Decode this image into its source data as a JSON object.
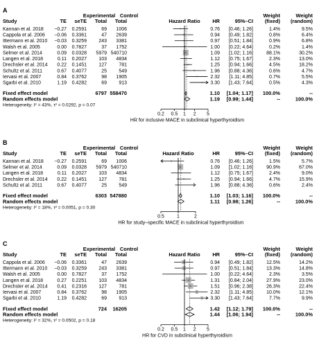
{
  "chart_data": [
    {
      "type": "forest",
      "panel_label": "A",
      "columns": {
        "study": "Study",
        "te": "TE",
        "sete": "seTE",
        "exp": "Experimental",
        "total": "Total",
        "ctrl": "Control",
        "ratio_title": "Hazard Ratio",
        "hr": "HR",
        "ci": "95%–CI",
        "wf1": "Weight",
        "wf2": "(fixed)",
        "wr1": "Weight",
        "wr2": "(random)"
      },
      "studies": [
        {
          "name": "Kannan et al. 2018",
          "te": "−0.27",
          "sete": "0.2591",
          "exp_total": "69",
          "ctrl_total": "1006",
          "hr": 0.76,
          "lo": 0.46,
          "hi": 1.26,
          "ci": "[0.46; 1.26]",
          "wf": "1.4%",
          "wr": "9.5%"
        },
        {
          "name": "Cappola et al. 2006",
          "te": "−0.06",
          "sete": "0.3361",
          "exp_total": "47",
          "ctrl_total": "2639",
          "hr": 0.94,
          "lo": 0.49,
          "hi": 1.82,
          "ci": "[0.49; 1.82]",
          "wf": "0.8%",
          "wr": "6.4%"
        },
        {
          "name": "Ittermann et al. 2010",
          "te": "−0.03",
          "sete": "0.3259",
          "exp_total": "243",
          "ctrl_total": "3381",
          "hr": 0.97,
          "lo": 0.51,
          "hi": 1.84,
          "ci": "[0.51; 1.84]",
          "wf": "0.9%",
          "wr": "6.8%"
        },
        {
          "name": "Walsh et al. 2005",
          "te": "0.00",
          "sete": "0.7827",
          "exp_total": "37",
          "ctrl_total": "1752",
          "hr": 1.0,
          "lo": 0.22,
          "hi": 4.64,
          "ci": "[0.22; 4.64]",
          "wf": "0.2%",
          "wr": "1.4%"
        },
        {
          "name": "Selmer et al. 2014",
          "te": "0.09",
          "sete": "0.0328",
          "exp_total": "5979",
          "ctrl_total": "540710",
          "hr": 1.09,
          "lo": 1.02,
          "hi": 1.16,
          "ci": "[1.02; 1.16]",
          "wf": "88.1%",
          "wr": "30.2%"
        },
        {
          "name": "Langen et al. 2018",
          "te": "0.11",
          "sete": "0.2027",
          "exp_total": "103",
          "ctrl_total": "4834",
          "hr": 1.12,
          "lo": 0.75,
          "hi": 1.67,
          "ci": "[0.75; 1.67]",
          "wf": "2.3%",
          "wr": "13.0%"
        },
        {
          "name": "Drechsler et al. 2014",
          "te": "0.22",
          "sete": "0.1451",
          "exp_total": "127",
          "ctrl_total": "781",
          "hr": 1.25,
          "lo": 0.94,
          "hi": 1.66,
          "ci": "[0.94; 1.66]",
          "wf": "4.5%",
          "wr": "18.2%"
        },
        {
          "name": "Schultz et al. 2011",
          "te": "0.67",
          "sete": "0.4077",
          "exp_total": "25",
          "ctrl_total": "549",
          "hr": 1.96,
          "lo": 0.88,
          "hi": 4.36,
          "ci": "[0.88; 4.36]",
          "wf": "0.6%",
          "wr": "4.7%"
        },
        {
          "name": "Iervasi et al. 2007",
          "te": "0.84",
          "sete": "0.3762",
          "exp_total": "98",
          "ctrl_total": "1905",
          "hr": 2.32,
          "lo": 1.11,
          "hi": 4.85,
          "ci": "[1.11; 4.85]",
          "wf": "0.7%",
          "wr": "5.5%"
        },
        {
          "name": "Sgarbi et al. 2010",
          "te": "1.19",
          "sete": "0.4282",
          "exp_total": "69",
          "ctrl_total": "913",
          "hr": 3.3,
          "lo": 1.43,
          "hi": 7.64,
          "ci": "[1.43; 7.64]",
          "wf": "0.5%",
          "wr": "4.3%"
        }
      ],
      "fixed": {
        "label": "Fixed effect model",
        "exp_total": "6797",
        "ctrl_total": "558470",
        "hr": 1.1,
        "lo": 1.04,
        "hi": 1.17,
        "ci": "[1.04; 1.17]",
        "wf": "100.0%",
        "wr": "--"
      },
      "random": {
        "label": "Random effects model",
        "hr": 1.19,
        "lo": 0.99,
        "hi": 1.44,
        "ci": "[0.99; 1.44]",
        "wf": "--",
        "wr": "100.0%"
      },
      "heterogeneity": "Heterogeneity: I² = 43%, τ² = 0.0292, p = 0.07",
      "axis_ticks": [
        0.2,
        0.5,
        1,
        2,
        5
      ],
      "axis_tick_labels": [
        "0.2",
        "0.5",
        "1",
        "2",
        "5"
      ],
      "xlim": [
        0.2,
        5
      ],
      "scale": "log",
      "xlabel": "HR for inclusive MACE in subclinical hyperthyroidism"
    },
    {
      "type": "forest",
      "panel_label": "B",
      "columns": {
        "study": "Study",
        "te": "TE",
        "sete": "seTE",
        "exp": "Experimental",
        "total": "Total",
        "ctrl": "Control",
        "ratio_title": "Hazard Ratio",
        "hr": "HR",
        "ci": "95%–CI",
        "wf1": "Weight",
        "wf2": "(fixed)",
        "wr1": "Weight",
        "wr2": "(random)"
      },
      "studies": [
        {
          "name": "Kannan et al. 2018",
          "te": "−0.27",
          "sete": "0.2591",
          "exp_total": "69",
          "ctrl_total": "1006",
          "hr": 0.76,
          "lo": 0.46,
          "hi": 1.26,
          "ci": "[0.46; 1.26]",
          "wf": "1.5%",
          "wr": "5.7%"
        },
        {
          "name": "Selmer et al. 2014",
          "te": "0.09",
          "sete": "0.0328",
          "exp_total": "5979",
          "ctrl_total": "540710",
          "hr": 1.09,
          "lo": 1.02,
          "hi": 1.16,
          "ci": "[1.02; 1.16]",
          "wf": "90.9%",
          "wr": "67.0%"
        },
        {
          "name": "Langen et al. 2018",
          "te": "0.11",
          "sete": "0.2027",
          "exp_total": "103",
          "ctrl_total": "4834",
          "hr": 1.12,
          "lo": 0.75,
          "hi": 1.67,
          "ci": "[0.75; 1.67]",
          "wf": "2.4%",
          "wr": "9.0%"
        },
        {
          "name": "Drechsler et al. 2014",
          "te": "0.22",
          "sete": "0.1451",
          "exp_total": "127",
          "ctrl_total": "781",
          "hr": 1.25,
          "lo": 0.94,
          "hi": 1.66,
          "ci": "[0.94; 1.66]",
          "wf": "4.7%",
          "wr": "15.9%"
        },
        {
          "name": "Schultz et al. 2011",
          "te": "0.67",
          "sete": "0.4077",
          "exp_total": "25",
          "ctrl_total": "549",
          "hr": 1.96,
          "lo": 0.88,
          "hi": 4.36,
          "ci": "[0.88; 4.36]",
          "wf": "0.6%",
          "wr": "2.4%"
        }
      ],
      "fixed": {
        "label": "Fixed effect model",
        "exp_total": "6303",
        "ctrl_total": "547880",
        "hr": 1.1,
        "lo": 1.03,
        "hi": 1.16,
        "ci": "[1.03; 1.16]",
        "wf": "100.0%",
        "wr": "--"
      },
      "random": {
        "label": "Random effects model",
        "hr": 1.11,
        "lo": 0.98,
        "hi": 1.26,
        "ci": "[0.98; 1.26]",
        "wf": "--",
        "wr": "100.0%"
      },
      "heterogeneity": "Heterogeneity: I² = 18%, τ² = 0.0051, p = 0.30",
      "axis_ticks": [
        0.5,
        1,
        2
      ],
      "axis_tick_labels": [
        "0.5",
        "1",
        "2"
      ],
      "xlim": [
        0.5,
        2
      ],
      "scale": "log",
      "xlabel": "HR for study–specific MACE in subclinical hyperthyroidism"
    },
    {
      "type": "forest",
      "panel_label": "C",
      "columns": {
        "study": "Study",
        "te": "TE",
        "sete": "seTE",
        "exp": "Experimental",
        "total": "Total",
        "ctrl": "Control",
        "ratio_title": "Hazard Ratio",
        "hr": "HR",
        "ci": "95%–CI",
        "wf1": "Weight",
        "wf2": "(fixed)",
        "wr1": "Weight",
        "wr2": "(random)"
      },
      "studies": [
        {
          "name": "Cappola et al. 2006",
          "te": "−0.06",
          "sete": "0.3361",
          "exp_total": "47",
          "ctrl_total": "2639",
          "hr": 0.94,
          "lo": 0.49,
          "hi": 1.82,
          "ci": "[0.49; 1.82]",
          "wf": "12.5%",
          "wr": "14.2%"
        },
        {
          "name": "Ittermann et al. 2010",
          "te": "−0.03",
          "sete": "0.3259",
          "exp_total": "243",
          "ctrl_total": "3381",
          "hr": 0.97,
          "lo": 0.51,
          "hi": 1.84,
          "ci": "[0.51; 1.84]",
          "wf": "13.3%",
          "wr": "14.8%"
        },
        {
          "name": "Walsh et al. 2005",
          "te": "0.00",
          "sete": "0.7827",
          "exp_total": "37",
          "ctrl_total": "1752",
          "hr": 1.0,
          "lo": 0.22,
          "hi": 4.64,
          "ci": "[0.22; 4.64]",
          "wf": "2.3%",
          "wr": "3.5%"
        },
        {
          "name": "Langen et al. 2018",
          "te": "0.27",
          "sete": "0.2251",
          "exp_total": "103",
          "ctrl_total": "4834",
          "hr": 1.31,
          "lo": 0.84,
          "hi": 2.04,
          "ci": "[0.84; 2.04]",
          "wf": "27.9%",
          "wr": "23.0%"
        },
        {
          "name": "Drechsler et al. 2014",
          "te": "0.41",
          "sete": "0.2316",
          "exp_total": "127",
          "ctrl_total": "781",
          "hr": 1.51,
          "lo": 0.96,
          "hi": 2.38,
          "ci": "[0.96; 2.38]",
          "wf": "26.3%",
          "wr": "22.4%"
        },
        {
          "name": "Iervasi et al. 2007",
          "te": "0.84",
          "sete": "0.3762",
          "exp_total": "98",
          "ctrl_total": "1905",
          "hr": 2.32,
          "lo": 1.11,
          "hi": 4.85,
          "ci": "[1.11; 4.85]",
          "wf": "10.0%",
          "wr": "12.1%"
        },
        {
          "name": "Sgarbi et al. 2010",
          "te": "1.19",
          "sete": "0.4282",
          "exp_total": "69",
          "ctrl_total": "913",
          "hr": 3.3,
          "lo": 1.43,
          "hi": 7.64,
          "ci": "[1.43; 7.64]",
          "wf": "7.7%",
          "wr": "9.9%"
        }
      ],
      "fixed": {
        "label": "Fixed effect model",
        "exp_total": "724",
        "ctrl_total": "16205",
        "hr": 1.42,
        "lo": 1.12,
        "hi": 1.79,
        "ci": "[1.12; 1.79]",
        "wf": "100.0%",
        "wr": "--"
      },
      "random": {
        "label": "Random effects model",
        "hr": 1.44,
        "lo": 1.06,
        "hi": 1.94,
        "ci": "[1.06; 1.94]",
        "wf": "--",
        "wr": "100.0%"
      },
      "heterogeneity": "Heterogeneity: I² = 32%, τ² = 0.0502, p = 0.18",
      "axis_ticks": [
        0.2,
        0.5,
        1,
        2,
        5
      ],
      "axis_tick_labels": [
        "0.2",
        "0.5",
        "1",
        "2",
        "5"
      ],
      "xlim": [
        0.2,
        5
      ],
      "scale": "log",
      "xlabel": "HR for CVD in subclinical hyperthyroidism"
    }
  ],
  "colors": {
    "square": "#b4b4b4",
    "line": "#000000",
    "ref_dashed": "#7a7a7a",
    "diamond": "#ffffff"
  }
}
